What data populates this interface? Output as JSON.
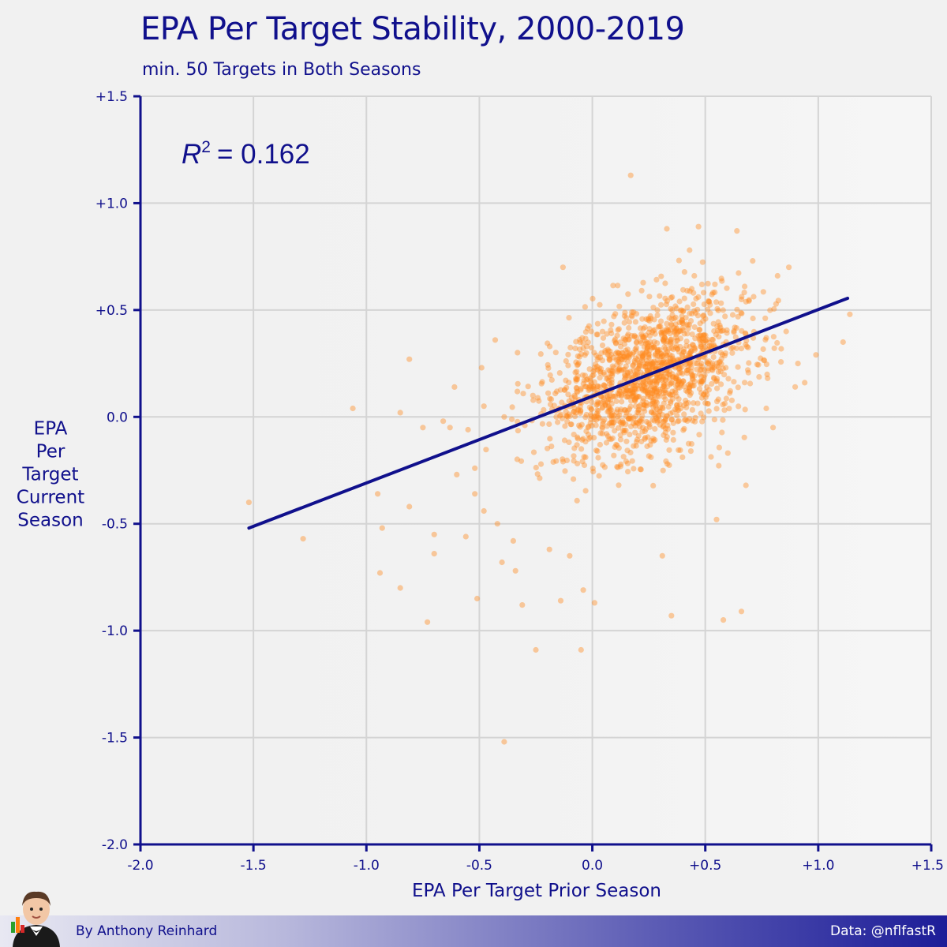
{
  "header": {
    "title": "EPA Per Target Stability, 2000-2019",
    "subtitle": "min. 50 Targets in Both Seasons"
  },
  "footer": {
    "credit": "By Anthony Reinhard",
    "source": "Data: @nflfastR"
  },
  "chart_data": {
    "type": "scatter",
    "title": "EPA Per Target Stability, 2000-2019",
    "subtitle": "min. 50 Targets in Both Seasons",
    "xlabel": "EPA Per Target Prior Season",
    "ylabel": [
      "EPA",
      "Per",
      "Target",
      "Current",
      "Season"
    ],
    "xlim": [
      -2.0,
      1.5
    ],
    "ylim": [
      -2.0,
      1.5
    ],
    "x_ticks": [
      -2.0,
      -1.5,
      -1.0,
      -0.5,
      0.0,
      0.5,
      1.0,
      1.5
    ],
    "x_tick_labels": [
      "-2.0",
      "-1.5",
      "-1.0",
      "-0.5",
      "0.0",
      "+0.5",
      "+1.0",
      "+1.5"
    ],
    "y_ticks": [
      -2.0,
      -1.5,
      -1.0,
      -0.5,
      0.0,
      0.5,
      1.0,
      1.5
    ],
    "y_tick_labels": [
      "-2.0",
      "-1.5",
      "-1.0",
      "-0.5",
      "0.0",
      "+0.5",
      "+1.0",
      "+1.5"
    ],
    "grid": true,
    "annotation": {
      "r2_label": "R",
      "r2_superscript": "2",
      "r2_value": "= 0.162"
    },
    "point_color": "#ff8a1f",
    "line_color": "#10108c",
    "fit_line": {
      "x": [
        -1.52,
        1.13
      ],
      "y": [
        -0.52,
        0.555
      ]
    },
    "outlier_points": [
      [
        0.17,
        1.13
      ],
      [
        -1.52,
        -0.4
      ],
      [
        -1.28,
        -0.57
      ],
      [
        -1.06,
        0.04
      ],
      [
        -0.85,
        0.02
      ],
      [
        -0.81,
        0.27
      ],
      [
        -0.95,
        -0.36
      ],
      [
        -0.93,
        -0.52
      ],
      [
        -0.94,
        -0.73
      ],
      [
        -0.85,
        -0.8
      ],
      [
        -0.81,
        -0.42
      ],
      [
        -0.73,
        -0.96
      ],
      [
        -0.7,
        -0.64
      ],
      [
        -0.7,
        -0.55
      ],
      [
        -0.63,
        -0.05
      ],
      [
        -0.61,
        0.14
      ],
      [
        -0.6,
        -0.27
      ],
      [
        -0.56,
        -0.56
      ],
      [
        -0.52,
        -0.24
      ],
      [
        -0.52,
        -0.36
      ],
      [
        -0.51,
        -0.85
      ],
      [
        -0.48,
        0.05
      ],
      [
        -0.48,
        -0.44
      ],
      [
        -0.42,
        -0.5
      ],
      [
        -0.4,
        -0.68
      ],
      [
        -0.39,
        -1.52
      ],
      [
        -0.35,
        -0.58
      ],
      [
        -0.34,
        -0.72
      ],
      [
        -0.31,
        -0.88
      ],
      [
        -0.25,
        -1.09
      ],
      [
        -0.19,
        -0.62
      ],
      [
        -0.14,
        -0.86
      ],
      [
        -0.1,
        -0.65
      ],
      [
        -0.05,
        -1.09
      ],
      [
        -0.04,
        -0.81
      ],
      [
        0.01,
        -0.87
      ],
      [
        0.31,
        -0.65
      ],
      [
        0.35,
        -0.93
      ],
      [
        0.58,
        -0.95
      ],
      [
        0.66,
        -0.91
      ],
      [
        0.99,
        0.29
      ],
      [
        1.11,
        0.35
      ],
      [
        1.14,
        0.48
      ],
      [
        0.87,
        0.7
      ],
      [
        0.82,
        0.66
      ],
      [
        0.71,
        0.73
      ],
      [
        0.64,
        0.87
      ],
      [
        0.47,
        0.89
      ],
      [
        0.33,
        0.88
      ],
      [
        0.94,
        0.16
      ],
      [
        0.91,
        0.25
      ],
      [
        0.77,
        0.04
      ],
      [
        0.8,
        -0.05
      ],
      [
        0.68,
        -0.32
      ],
      [
        0.55,
        -0.48
      ],
      [
        -0.13,
        0.7
      ],
      [
        -0.43,
        0.36
      ],
      [
        -0.49,
        0.23
      ],
      [
        -0.39,
        0.0
      ],
      [
        -0.75,
        -0.05
      ],
      [
        -0.55,
        -0.06
      ],
      [
        -0.66,
        -0.02
      ]
    ],
    "cluster": {
      "n": 1500,
      "x_mean": 0.25,
      "x_sd": 0.22,
      "y_mean": 0.19,
      "y_sd": 0.19,
      "correlation": 0.4
    }
  }
}
